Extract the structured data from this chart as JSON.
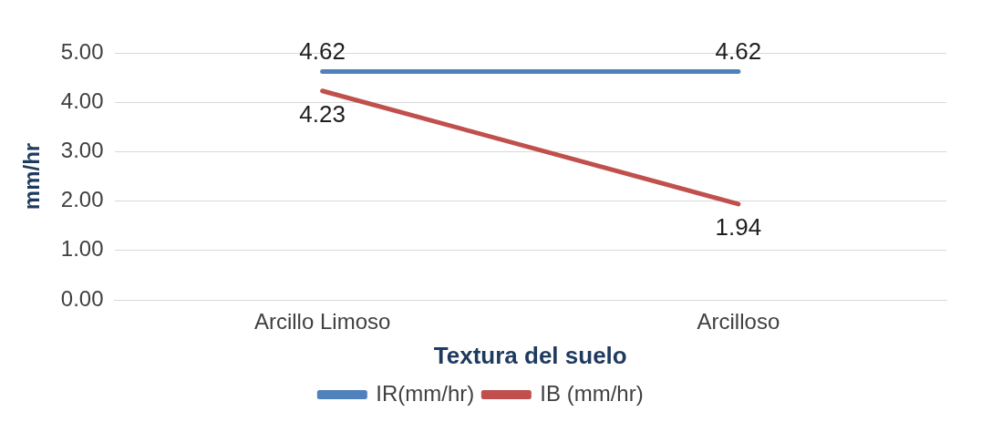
{
  "chart_data": {
    "type": "line",
    "xlabel": "Textura del suelo",
    "ylabel": "mm/hr",
    "categories": [
      "Arcillo Limoso",
      "Arcilloso"
    ],
    "series": [
      {
        "name": "IR(mm/hr)",
        "color": "#4f81bd",
        "values": [
          4.62,
          4.62
        ]
      },
      {
        "name": "IB (mm/hr)",
        "color": "#c0504d",
        "values": [
          4.23,
          1.94
        ]
      }
    ],
    "ylim": [
      0,
      5
    ],
    "yticks": [
      {
        "value": 0,
        "label": "0.00"
      },
      {
        "value": 1,
        "label": "1.00"
      },
      {
        "value": 2,
        "label": "2.00"
      },
      {
        "value": 3,
        "label": "3.00"
      },
      {
        "value": 4,
        "label": "4.00"
      },
      {
        "value": 5,
        "label": "5.00"
      }
    ],
    "grid": "y",
    "legend": "bottom",
    "data_labels": true,
    "marker": "none",
    "line_style": "solid"
  }
}
